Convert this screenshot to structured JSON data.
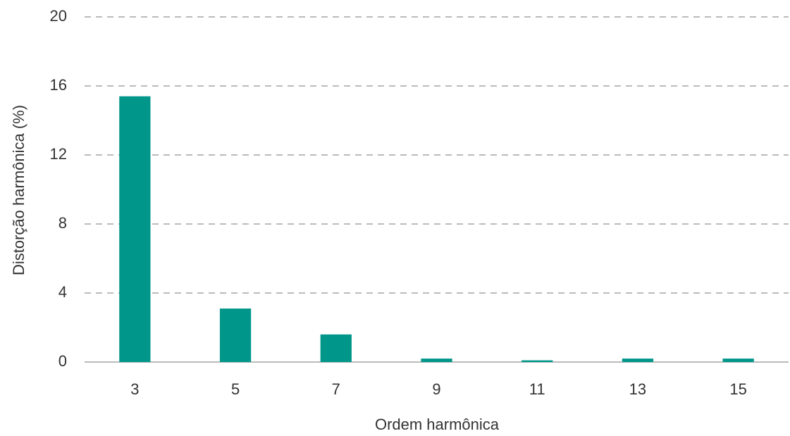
{
  "chart_data": {
    "type": "bar",
    "x_label": "Ordem harmônica",
    "y_label": "Distorção harmônica (%)",
    "categories": [
      "3",
      "5",
      "7",
      "9",
      "11",
      "13",
      "15"
    ],
    "values": [
      15.4,
      3.1,
      1.6,
      0.2,
      0.1,
      0.2,
      0.2
    ],
    "color": "#00968a",
    "ylim": [
      0,
      20
    ],
    "yticks": [
      0,
      4,
      8,
      12,
      16,
      20
    ],
    "grid": true
  }
}
